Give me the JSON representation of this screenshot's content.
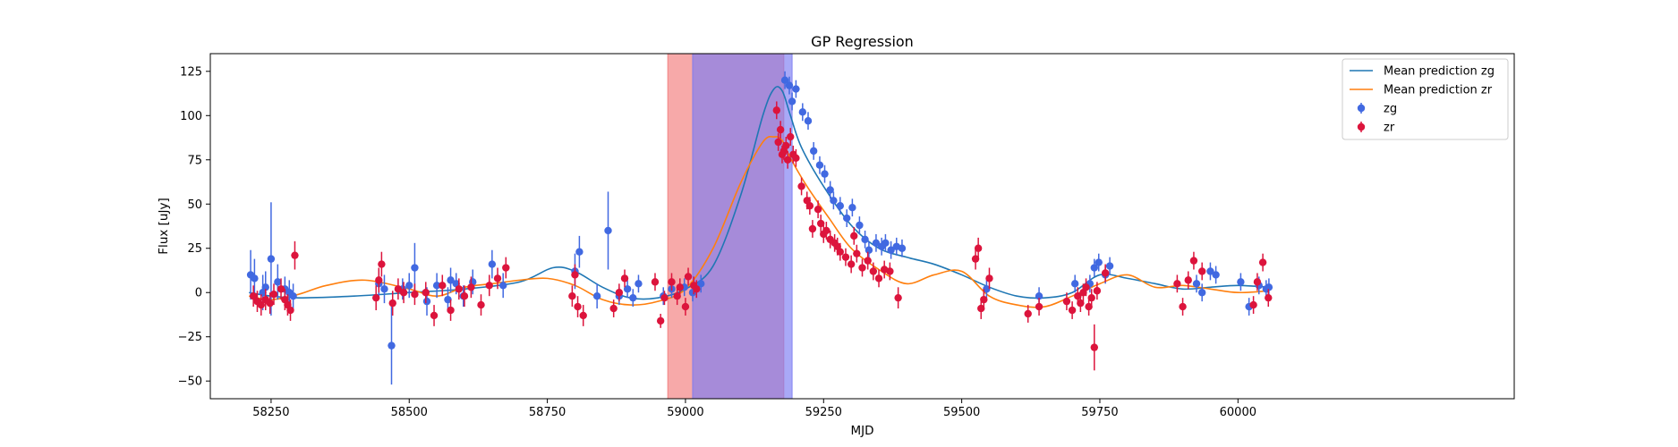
{
  "chart_data": {
    "type": "scatter",
    "title": "GP Regression",
    "xlabel": "MJD",
    "ylabel": "Flux [uJy]",
    "xlim": [
      58140,
      60500
    ],
    "ylim": [
      -60,
      135
    ],
    "x_ticks": [
      58250,
      58500,
      58750,
      59000,
      59250,
      59500,
      59750,
      60000
    ],
    "y_ticks": [
      -50,
      -25,
      0,
      25,
      50,
      75,
      100,
      125
    ],
    "grid": false,
    "legend_position": "top-right",
    "shaded_regions": [
      {
        "band": "zr",
        "x_start": 58968,
        "x_end": 59178,
        "color": "#f27b7b",
        "opacity": 0.65
      },
      {
        "band": "zg",
        "x_start": 59013,
        "x_end": 59193,
        "color": "#7b7bf2",
        "opacity": 0.65
      }
    ],
    "series": [
      {
        "name": "Mean prediction zg",
        "kind": "line",
        "color": "#1f77b4",
        "x": [
          58210,
          58250,
          58300,
          58400,
          58500,
          58600,
          58700,
          58760,
          58800,
          58850,
          58900,
          58950,
          59000,
          59050,
          59100,
          59140,
          59160,
          59175,
          59190,
          59210,
          59250,
          59300,
          59350,
          59400,
          59450,
          59500,
          59550,
          59600,
          59650,
          59700,
          59750,
          59800,
          59850,
          59900,
          59950,
          60000,
          60056
        ],
        "y": [
          0,
          -2,
          -3,
          -2,
          0,
          2,
          6,
          14,
          12,
          3,
          -3,
          -3,
          2,
          15,
          55,
          100,
          115,
          114,
          100,
          82,
          60,
          38,
          25,
          20,
          16,
          10,
          3,
          -2,
          -3,
          0,
          10,
          8,
          5,
          2,
          3,
          4,
          3
        ]
      },
      {
        "name": "Mean prediction zr",
        "kind": "line",
        "color": "#ff7f0e",
        "x": [
          58210,
          58250,
          58300,
          58350,
          58420,
          58500,
          58550,
          58600,
          58650,
          58700,
          58750,
          58800,
          58850,
          58900,
          58950,
          59000,
          59050,
          59100,
          59140,
          59160,
          59175,
          59190,
          59220,
          59260,
          59300,
          59350,
          59400,
          59450,
          59500,
          59550,
          59600,
          59650,
          59700,
          59750,
          59800,
          59850,
          59900,
          59950,
          60000,
          60056
        ],
        "y": [
          -2,
          -4,
          -1,
          4,
          7,
          2,
          -2,
          3,
          5,
          7,
          8,
          4,
          -4,
          -7,
          -5,
          2,
          25,
          62,
          85,
          88,
          86,
          76,
          60,
          42,
          25,
          13,
          5,
          10,
          12,
          -2,
          -7,
          -8,
          -2,
          5,
          10,
          3,
          4,
          2,
          0,
          1
        ]
      },
      {
        "name": "zg",
        "kind": "errorbar",
        "color": "#4169e1",
        "x": [
          58213,
          58220,
          58235,
          58240,
          58250,
          58262,
          58275,
          58283,
          58290,
          58445,
          58455,
          58468,
          58488,
          58500,
          58510,
          58532,
          58550,
          58570,
          58575,
          58585,
          58598,
          58615,
          58650,
          58670,
          58800,
          58808,
          58840,
          58860,
          58880,
          58895,
          58905,
          58915,
          58960,
          58975,
          58998,
          59013,
          59028,
          59180,
          59188,
          59193,
          59200,
          59212,
          59222,
          59232,
          59243,
          59252,
          59262,
          59268,
          59280,
          59292,
          59302,
          59315,
          59325,
          59332,
          59345,
          59355,
          59362,
          59372,
          59382,
          59392,
          59545,
          59640,
          59705,
          59732,
          59740,
          59748,
          59760,
          59768,
          59925,
          59935,
          59950,
          59960,
          60005,
          60020,
          60038,
          60051,
          60056
        ],
        "y": [
          10,
          8,
          0,
          3,
          19,
          6,
          2,
          0,
          -2,
          5,
          2,
          -30,
          2,
          4,
          14,
          -5,
          4,
          -4,
          7,
          5,
          -2,
          6,
          16,
          4,
          12,
          23,
          -2,
          35,
          -2,
          2,
          -3,
          5,
          -2,
          2,
          3,
          0,
          5,
          120,
          117,
          108,
          115,
          102,
          97,
          80,
          72,
          67,
          58,
          52,
          49,
          42,
          48,
          38,
          30,
          24,
          28,
          26,
          28,
          24,
          26,
          25,
          2,
          -2,
          5,
          5,
          14,
          17,
          10,
          15,
          5,
          0,
          12,
          10,
          6,
          -8,
          4,
          2,
          3
        ],
        "yerr": [
          14,
          11,
          10,
          9,
          32,
          10,
          7,
          7,
          7,
          8,
          8,
          22,
          6,
          7,
          14,
          8,
          7,
          7,
          7,
          6,
          6,
          7,
          8,
          7,
          10,
          9,
          7,
          22,
          5,
          5,
          5,
          5,
          5,
          5,
          5,
          5,
          5,
          5,
          5,
          5,
          5,
          5,
          5,
          5,
          5,
          5,
          5,
          5,
          5,
          5,
          5,
          5,
          5,
          5,
          5,
          5,
          5,
          5,
          5,
          5,
          5,
          5,
          5,
          5,
          5,
          5,
          5,
          5,
          5,
          5,
          5,
          5,
          5,
          5,
          5,
          5,
          5
        ]
      },
      {
        "name": "zr",
        "kind": "errorbar",
        "color": "#dc143c",
        "x": [
          58218,
          58225,
          58232,
          58240,
          58248,
          58255,
          58268,
          58275,
          58280,
          58285,
          58293,
          58440,
          58445,
          58450,
          58470,
          58480,
          58490,
          58510,
          58530,
          58545,
          58560,
          58575,
          58590,
          58600,
          58612,
          58630,
          58645,
          58660,
          58675,
          58795,
          58800,
          58805,
          58815,
          58870,
          58880,
          58890,
          58945,
          58955,
          58962,
          58975,
          58985,
          58990,
          59000,
          59005,
          59015,
          59020,
          59165,
          59168,
          59172,
          59175,
          59178,
          59182,
          59185,
          59190,
          59195,
          59200,
          59210,
          59220,
          59225,
          59230,
          59240,
          59245,
          59250,
          59255,
          59262,
          59270,
          59275,
          59280,
          59290,
          59300,
          59305,
          59310,
          59320,
          59330,
          59340,
          59350,
          59360,
          59370,
          59385,
          59525,
          59530,
          59535,
          59540,
          59550,
          59620,
          59640,
          59690,
          59700,
          59710,
          59715,
          59720,
          59725,
          59730,
          59735,
          59740,
          59745,
          59760,
          59890,
          59900,
          59910,
          59920,
          59935,
          60028,
          60035,
          60045,
          60055
        ],
        "y": [
          -2,
          -5,
          -7,
          -4,
          -6,
          -1,
          2,
          -4,
          -7,
          -10,
          21,
          -3,
          7,
          16,
          -6,
          2,
          0,
          -1,
          0,
          -13,
          4,
          -10,
          2,
          -2,
          3,
          -7,
          4,
          8,
          14,
          -2,
          10,
          -8,
          -13,
          -9,
          0,
          8,
          6,
          -16,
          -3,
          6,
          -2,
          3,
          -8,
          9,
          4,
          2,
          103,
          85,
          92,
          78,
          80,
          83,
          75,
          88,
          78,
          76,
          60,
          52,
          49,
          36,
          47,
          39,
          33,
          35,
          30,
          28,
          26,
          23,
          20,
          16,
          32,
          22,
          14,
          18,
          12,
          8,
          13,
          12,
          -3,
          19,
          25,
          -9,
          -4,
          8,
          -12,
          -8,
          -5,
          -10,
          -2,
          -6,
          0,
          3,
          -8,
          -3,
          -31,
          1,
          11,
          5,
          -8,
          7,
          18,
          12,
          -7,
          6,
          17,
          -3
        ],
        "yerr": [
          6,
          6,
          6,
          6,
          6,
          6,
          6,
          6,
          6,
          6,
          8,
          7,
          7,
          7,
          7,
          6,
          6,
          6,
          6,
          6,
          6,
          6,
          6,
          6,
          6,
          6,
          6,
          6,
          6,
          6,
          6,
          6,
          6,
          5,
          5,
          5,
          5,
          4,
          4,
          5,
          5,
          5,
          5,
          5,
          5,
          5,
          5,
          5,
          5,
          5,
          5,
          5,
          5,
          5,
          5,
          5,
          5,
          5,
          5,
          5,
          5,
          5,
          5,
          5,
          5,
          5,
          5,
          5,
          5,
          5,
          5,
          5,
          5,
          5,
          5,
          5,
          5,
          5,
          6,
          6,
          6,
          6,
          6,
          6,
          5,
          5,
          5,
          5,
          5,
          5,
          5,
          5,
          5,
          5,
          13,
          5,
          5,
          5,
          5,
          5,
          5,
          5,
          5,
          5,
          5,
          5
        ]
      }
    ]
  }
}
